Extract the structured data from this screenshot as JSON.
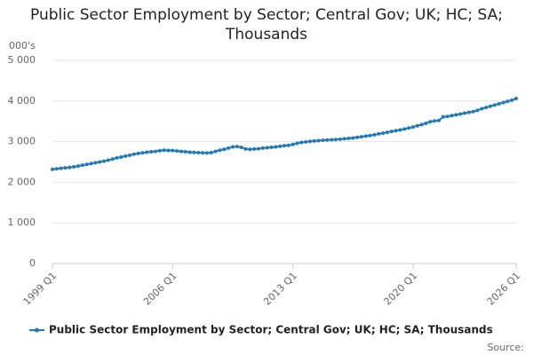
{
  "chart_data": {
    "type": "line",
    "title": "Public Sector Employment by Sector; Central Gov; UK; HC; SA; Thousands",
    "y_label": "000's",
    "source": "Source:",
    "categories": [
      "1999 Q1",
      null,
      null,
      null,
      null,
      null,
      null,
      null,
      null,
      null,
      null,
      null,
      null,
      null,
      null,
      null,
      null,
      null,
      null,
      null,
      null,
      null,
      null,
      null,
      null,
      null,
      null,
      null,
      "2006 Q1",
      null,
      null,
      null,
      null,
      null,
      null,
      null,
      null,
      null,
      null,
      null,
      null,
      null,
      null,
      null,
      null,
      null,
      null,
      null,
      null,
      null,
      null,
      null,
      null,
      null,
      null,
      null,
      "2013 Q1",
      null,
      null,
      null,
      null,
      null,
      null,
      null,
      null,
      null,
      null,
      null,
      null,
      null,
      null,
      null,
      null,
      null,
      null,
      null,
      null,
      null,
      null,
      null,
      null,
      null,
      null,
      null,
      "2020 Q1",
      null,
      null,
      null,
      null,
      null,
      null,
      null,
      null,
      null,
      null,
      null,
      null,
      null,
      null,
      null,
      null,
      null,
      null,
      null,
      null,
      null,
      null,
      null,
      "2026 Q1"
    ],
    "series": [
      {
        "name": "Public Sector Employment by Sector; Central Gov; UK; HC; SA; Thousands",
        "color": "#1f7bb8",
        "values": [
          2320,
          2330,
          2345,
          2355,
          2365,
          2380,
          2400,
          2420,
          2440,
          2460,
          2480,
          2500,
          2520,
          2545,
          2570,
          2600,
          2620,
          2645,
          2665,
          2690,
          2710,
          2725,
          2740,
          2750,
          2760,
          2775,
          2790,
          2785,
          2780,
          2770,
          2760,
          2750,
          2740,
          2735,
          2730,
          2725,
          2720,
          2730,
          2760,
          2790,
          2810,
          2840,
          2870,
          2880,
          2860,
          2820,
          2810,
          2820,
          2825,
          2840,
          2850,
          2860,
          2870,
          2885,
          2900,
          2910,
          2930,
          2960,
          2980,
          2995,
          3005,
          3015,
          3025,
          3035,
          3040,
          3045,
          3050,
          3060,
          3070,
          3080,
          3090,
          3105,
          3120,
          3135,
          3150,
          3170,
          3190,
          3210,
          3230,
          3250,
          3270,
          3290,
          3310,
          3335,
          3360,
          3390,
          3420,
          3450,
          3490,
          3510,
          3520,
          3610,
          3620,
          3640,
          3660,
          3680,
          3700,
          3720,
          3740,
          3770,
          3810,
          3840,
          3870,
          3900,
          3930,
          3960,
          3990,
          4020,
          4060
        ]
      }
    ],
    "ylim": [
      0,
      5000
    ],
    "yticks": [
      0,
      {
        "value": 1000,
        "label": "1 000"
      },
      {
        "value": 2000,
        "label": "2 000"
      },
      {
        "value": 3000,
        "label": "3 000"
      },
      {
        "value": 4000,
        "label": "4 000"
      },
      {
        "value": 5000,
        "label": "5 000"
      }
    ],
    "grid": true
  }
}
